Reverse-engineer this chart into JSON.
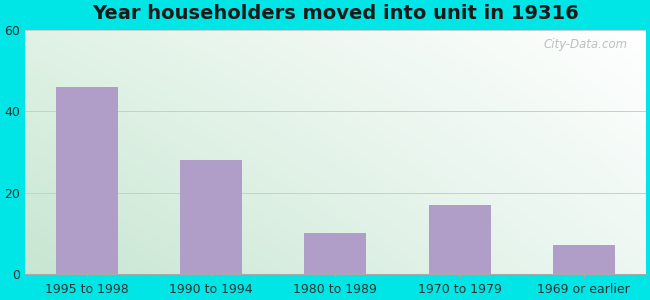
{
  "title": "Year householders moved into unit in 19316",
  "categories": [
    "1995 to 1998",
    "1990 to 1994",
    "1980 to 1989",
    "1970 to 1979",
    "1969 or earlier"
  ],
  "values": [
    46,
    28,
    10,
    17,
    7
  ],
  "bar_color": "#b09ec8",
  "ylim": [
    0,
    60
  ],
  "yticks": [
    0,
    20,
    40,
    60
  ],
  "fig_bg_color": "#00e5e5",
  "plot_bg_color_topleft": "#d4eed8",
  "plot_bg_color_topright": "#edfaf8",
  "plot_bg_color_bottomleft": "#c8ead0",
  "plot_bg_color_bottomright": "#e0f8f4",
  "title_fontsize": 14,
  "tick_fontsize": 9,
  "watermark": "City-Data.com",
  "grid_color": "#cccccc",
  "bar_width": 0.5
}
